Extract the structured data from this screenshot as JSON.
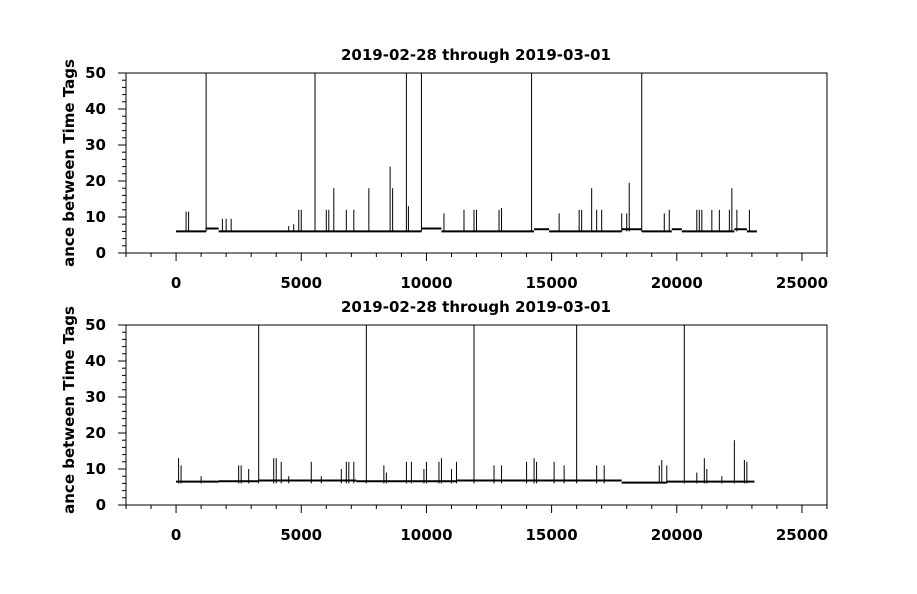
{
  "chart_data": [
    {
      "type": "line",
      "title": "2019-02-28 through 2019-03-01",
      "xlabel": "",
      "ylabel": "ance between Time Tags",
      "xlim": [
        -2000,
        26000
      ],
      "ylim": [
        0,
        50
      ],
      "x_ticks": [
        0,
        5000,
        10000,
        15000,
        20000,
        25000
      ],
      "y_ticks": [
        0,
        10,
        20,
        30,
        40,
        50
      ],
      "x_minor_step": 1000,
      "y_minor_step": 2,
      "grid": false,
      "baseline_segments": [
        {
          "x": [
            0,
            1200
          ],
          "y": 6.0
        },
        {
          "x": [
            1200,
            1700
          ],
          "y": 6.8
        },
        {
          "x": [
            1700,
            9800
          ],
          "y": 6.0
        },
        {
          "x": [
            9800,
            10600
          ],
          "y": 6.8
        },
        {
          "x": [
            10600,
            14300
          ],
          "y": 6.0
        },
        {
          "x": [
            14300,
            14900
          ],
          "y": 6.6
        },
        {
          "x": [
            14900,
            17800
          ],
          "y": 6.0
        },
        {
          "x": [
            17800,
            18600
          ],
          "y": 6.6
        },
        {
          "x": [
            18600,
            19800
          ],
          "y": 6.0
        },
        {
          "x": [
            19800,
            20200
          ],
          "y": 6.6
        },
        {
          "x": [
            20200,
            22300
          ],
          "y": 6.0
        },
        {
          "x": [
            22300,
            22800
          ],
          "y": 6.6
        },
        {
          "x": [
            22800,
            23200
          ],
          "y": 6.0
        }
      ],
      "spikes": [
        [
          1200,
          50
        ],
        [
          5550,
          50
        ],
        [
          9200,
          50
        ],
        [
          9800,
          50
        ],
        [
          14200,
          50
        ],
        [
          18600,
          50
        ],
        [
          8550,
          24
        ],
        [
          8650,
          18
        ],
        [
          18100,
          19.5
        ],
        [
          16600,
          18
        ],
        [
          6300,
          18
        ],
        [
          7700,
          18
        ],
        [
          22200,
          18
        ],
        [
          9280,
          13
        ],
        [
          13000,
          12.5
        ],
        [
          400,
          11.5
        ],
        [
          500,
          11.5
        ],
        [
          1850,
          9.5
        ],
        [
          2000,
          9.5
        ],
        [
          2200,
          9.5
        ],
        [
          4900,
          12
        ],
        [
          5000,
          12
        ],
        [
          6000,
          12
        ],
        [
          6100,
          12
        ],
        [
          6800,
          12
        ],
        [
          7100,
          12
        ],
        [
          10700,
          11
        ],
        [
          11500,
          12
        ],
        [
          11900,
          12
        ],
        [
          12000,
          12
        ],
        [
          12900,
          12
        ],
        [
          15300,
          11
        ],
        [
          16100,
          12
        ],
        [
          16200,
          12
        ],
        [
          16800,
          12
        ],
        [
          17000,
          12
        ],
        [
          17800,
          11
        ],
        [
          18000,
          11
        ],
        [
          19500,
          11
        ],
        [
          19700,
          12
        ],
        [
          20800,
          12
        ],
        [
          20900,
          12
        ],
        [
          21000,
          12
        ],
        [
          21400,
          12
        ],
        [
          21700,
          12
        ],
        [
          22100,
          12
        ],
        [
          22400,
          12
        ],
        [
          22900,
          12
        ],
        [
          4500,
          7.5
        ],
        [
          4700,
          8
        ]
      ]
    },
    {
      "type": "line",
      "title": "2019-02-28 through 2019-03-01",
      "xlabel": "",
      "ylabel": "ance between Time Tags",
      "xlim": [
        -2000,
        26000
      ],
      "ylim": [
        0,
        50
      ],
      "x_ticks": [
        0,
        5000,
        10000,
        15000,
        20000,
        25000
      ],
      "y_ticks": [
        0,
        10,
        20,
        30,
        40,
        50
      ],
      "x_minor_step": 1000,
      "y_minor_step": 2,
      "grid": false,
      "baseline_segments": [
        {
          "x": [
            0,
            1700
          ],
          "y": 6.5
        },
        {
          "x": [
            1700,
            3300
          ],
          "y": 6.6
        },
        {
          "x": [
            3300,
            7200
          ],
          "y": 6.8
        },
        {
          "x": [
            7200,
            11200
          ],
          "y": 6.6
        },
        {
          "x": [
            11200,
            17800
          ],
          "y": 6.8
        },
        {
          "x": [
            17800,
            19600
          ],
          "y": 6.2
        },
        {
          "x": [
            19600,
            23100
          ],
          "y": 6.5
        }
      ],
      "spikes": [
        [
          3300,
          50
        ],
        [
          7600,
          50
        ],
        [
          11900,
          50
        ],
        [
          16000,
          50
        ],
        [
          20300,
          50
        ],
        [
          22300,
          18
        ],
        [
          100,
          13
        ],
        [
          200,
          11
        ],
        [
          3900,
          13
        ],
        [
          4000,
          13
        ],
        [
          4200,
          12
        ],
        [
          2500,
          11
        ],
        [
          2600,
          11
        ],
        [
          2900,
          10
        ],
        [
          5400,
          12
        ],
        [
          6600,
          10
        ],
        [
          6800,
          12
        ],
        [
          6900,
          12
        ],
        [
          7100,
          12
        ],
        [
          8300,
          11
        ],
        [
          8400,
          9
        ],
        [
          9200,
          12
        ],
        [
          9400,
          12
        ],
        [
          9900,
          10
        ],
        [
          10000,
          12
        ],
        [
          10500,
          12
        ],
        [
          10600,
          13
        ],
        [
          11000,
          10
        ],
        [
          11200,
          12
        ],
        [
          12700,
          11
        ],
        [
          13000,
          11
        ],
        [
          14000,
          12
        ],
        [
          14300,
          13
        ],
        [
          14400,
          12
        ],
        [
          15100,
          12
        ],
        [
          15500,
          11
        ],
        [
          16800,
          11
        ],
        [
          17100,
          11
        ],
        [
          19300,
          11
        ],
        [
          19400,
          12.5
        ],
        [
          19600,
          11
        ],
        [
          20800,
          9
        ],
        [
          21100,
          13
        ],
        [
          21200,
          10
        ],
        [
          21800,
          8
        ],
        [
          22700,
          12.5
        ],
        [
          22800,
          12
        ],
        [
          1000,
          8
        ],
        [
          4500,
          8
        ],
        [
          5800,
          8
        ]
      ]
    }
  ]
}
